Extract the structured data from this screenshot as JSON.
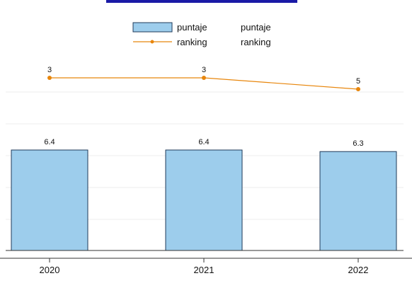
{
  "chart_data": {
    "type": "bar",
    "categories": [
      "2020",
      "2021",
      "2022"
    ],
    "series": [
      {
        "name": "puntaje",
        "type": "bar",
        "values": [
          6.4,
          6.4,
          6.3
        ],
        "labels": [
          "6.4",
          "6.4",
          "6.3"
        ],
        "color": "#9dcdec",
        "edge_color": "#1f3a5a"
      },
      {
        "name": "ranking",
        "type": "line",
        "values": [
          3,
          3,
          5
        ],
        "labels": [
          "3",
          "3",
          "5"
        ],
        "color": "#e8860c",
        "inverted_axis": true
      }
    ],
    "legend": {
      "placement": "top-center",
      "entries": [
        {
          "swatch": "bar",
          "label": "puntaje",
          "label2": "puntaje"
        },
        {
          "swatch": "line",
          "label": "ranking",
          "label2": "ranking"
        }
      ]
    },
    "title_color": "#1a1aa6",
    "grid": true,
    "grid_color": "#ececec",
    "axis_color": "#333333"
  }
}
